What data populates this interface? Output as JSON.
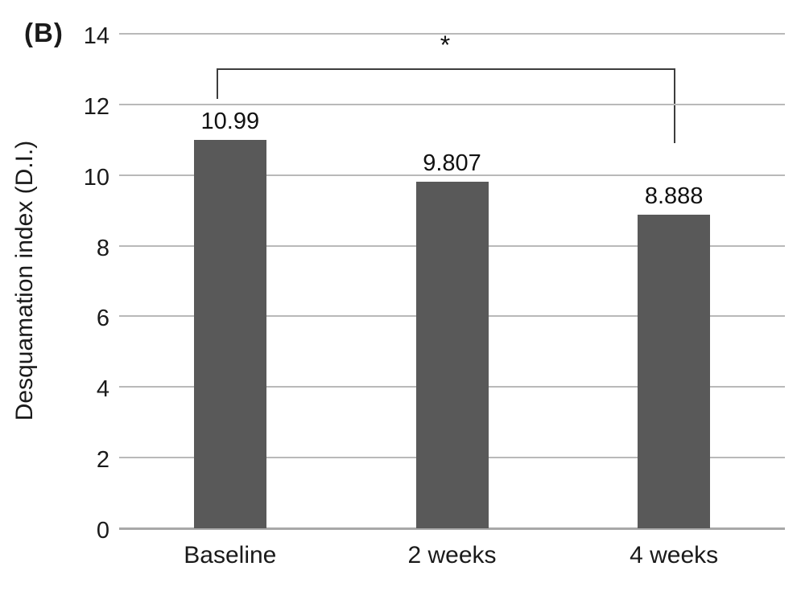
{
  "panel_label": "(B)",
  "chart_data": {
    "type": "bar",
    "title": "",
    "xlabel": "",
    "ylabel": "Desquamation index (D.I.)",
    "categories": [
      "Baseline",
      "2 weeks",
      "4 weeks"
    ],
    "values": [
      10.99,
      9.807,
      8.888
    ],
    "value_labels": [
      "10.99",
      "9.807",
      "8.888"
    ],
    "ylim": [
      0,
      14
    ],
    "yticks": [
      0,
      2,
      4,
      6,
      8,
      10,
      12,
      14
    ],
    "grid": "horizontal",
    "legend": "none",
    "bar_color": "#595959",
    "gridline_color": "#b9b9b9",
    "annotation": {
      "text": "*",
      "from_category": "Baseline",
      "to_category": "4 weeks"
    }
  }
}
